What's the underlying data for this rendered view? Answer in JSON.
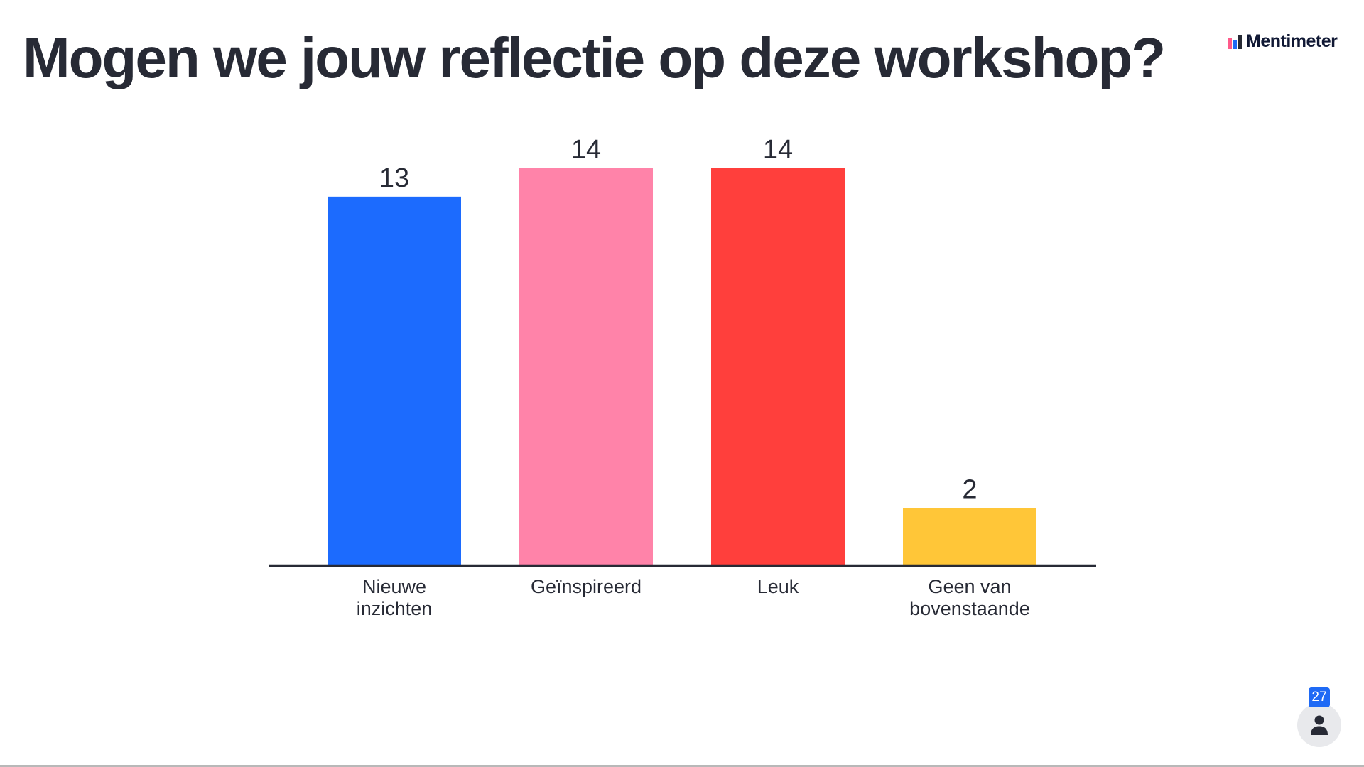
{
  "slide": {
    "title": "Mogen we jouw reflectie op deze workshop?"
  },
  "logo": {
    "text": "Mentimeter",
    "icon": "mentimeter-logo-icon",
    "colors": [
      "#ff5a8a",
      "#1f6af5",
      "#272a35"
    ]
  },
  "audience": {
    "count": "27",
    "icon": "person-icon"
  },
  "chart_data": {
    "type": "bar",
    "title": "",
    "xlabel": "",
    "ylabel": "",
    "categories": [
      [
        "Nieuwe",
        "inzichten"
      ],
      [
        "Geïnspireerd"
      ],
      [
        "Leuk"
      ],
      [
        "Geen van",
        "bovenstaande"
      ]
    ],
    "values": [
      13,
      14,
      14,
      2
    ],
    "colors": [
      "#1c6bfe",
      "#ff83a9",
      "#ff3f3c",
      "#ffc638"
    ],
    "ylim": [
      0,
      14
    ],
    "grid": false,
    "show_value_labels": true
  }
}
